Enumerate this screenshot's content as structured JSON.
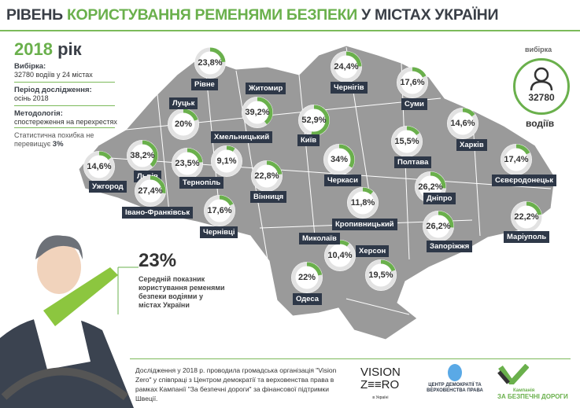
{
  "title": {
    "part1": "РІВЕНЬ ",
    "part2": "КОРИСТУВАННЯ РЕМЕНЯМИ БЕЗПЕКИ",
    "part3": " У МІСТАХ УКРАЇНИ"
  },
  "year": {
    "value": "2018",
    "suffix": " рік"
  },
  "info": {
    "sample_label": "Вибірка:",
    "sample_value": "32780 водіїв у 24 містах",
    "period_label": "Період дослідження:",
    "period_value": "осінь 2018",
    "method_label": "Методологія:",
    "method_value": "спостереження на перехрестях",
    "error_text": "Статистична похибка не перевищує ",
    "error_value": "3%"
  },
  "sample_badge": {
    "label": "вибірка",
    "value": "32780",
    "unit": "водіїв",
    "icon": "person-icon"
  },
  "summary": {
    "value": "23%",
    "text": "Середній показник користування ременями безпеки водіями у містах України"
  },
  "colors": {
    "accent": "#6ab04c",
    "label_bg": "#2e3848",
    "map": "#9a9a9a",
    "ring": "#e2e2e2"
  },
  "cities": [
    {
      "name": "Рівне",
      "value": 23.8,
      "text": "23,8%"
    },
    {
      "name": "Чернігів",
      "value": 24.4,
      "text": "24,4%"
    },
    {
      "name": "Суми",
      "value": 17.6,
      "text": "17,6%"
    },
    {
      "name": "Житомир",
      "value": 39.2,
      "text": "39,2%"
    },
    {
      "name": "Луцьк",
      "value": 20,
      "text": "20%"
    },
    {
      "name": "Київ",
      "value": 52.9,
      "text": "52,9%"
    },
    {
      "name": "Львів",
      "value": 38.2,
      "text": "38,2%"
    },
    {
      "name": "Хмельницький",
      "value": 9.1,
      "text": "9,1%"
    },
    {
      "name": "Тернопіль",
      "value": 23.5,
      "text": "23,5%"
    },
    {
      "name": "Ужгород",
      "value": 14.6,
      "text": "14,6%"
    },
    {
      "name": "Вінниця",
      "value": 22.8,
      "text": "22,8%"
    },
    {
      "name": "Черкаси",
      "value": 34,
      "text": "34%"
    },
    {
      "name": "Полтава",
      "value": 15.5,
      "text": "15,5%"
    },
    {
      "name": "Харків",
      "value": 14.6,
      "text": "14,6%"
    },
    {
      "name": "Сєвєродонецьк",
      "value": 17.4,
      "text": "17,4%"
    },
    {
      "name": "Дніпро",
      "value": 26.2,
      "text": "26,2%"
    },
    {
      "name": "Івано-Франківськ",
      "value": 27.4,
      "text": "27,4%"
    },
    {
      "name": "Чернівці",
      "value": 17.6,
      "text": "17,6%"
    },
    {
      "name": "Кропивницький",
      "value": 11.8,
      "text": "11,8%"
    },
    {
      "name": "Запоріжжя",
      "value": 26.2,
      "text": "26,2%"
    },
    {
      "name": "Маріуполь",
      "value": 22.2,
      "text": "22,2%"
    },
    {
      "name": "Миколаїв",
      "value": 10.4,
      "text": "10,4%"
    },
    {
      "name": "Херсон",
      "value": 19.5,
      "text": "19,5%"
    },
    {
      "name": "Одеса",
      "value": 22,
      "text": "22%"
    }
  ],
  "footer": {
    "text": "Дослідження у 2018 р. проводила громадська організація \"Vision Zero\" у співпраці з Центром демократії та верховенства права в рамках Кампанії \"За безпечні дороги\" за фінансової підтримки Швеції.",
    "logos": {
      "vision1": "VISION",
      "vision2": "Z≡≡RO",
      "vision_sub": "в Україні",
      "cdvp": "ЦЕНТР ДЕМОКРАТІЇ ТА ВЕРХОВЕНСТВА ПРАВА",
      "campaign_small": "Кампанія",
      "campaign": "ЗА БЕЗПЕЧНІ ДОРОГИ"
    }
  }
}
